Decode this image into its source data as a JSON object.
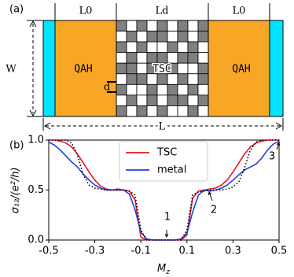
{
  "diagram": {
    "panel_label": "(a)",
    "lengths": {
      "left": "L0",
      "middle": "Ld",
      "right": "L0"
    },
    "width": "W",
    "total": "L",
    "unit": "d",
    "left_block": "QAH",
    "middle_block": "TSC",
    "right_block": "QAH"
  },
  "chart_data": {
    "type": "line",
    "panel_label": "(b)",
    "xlabel": {
      "main": "M",
      "sub": "z"
    },
    "ylabel": "σ₁₂/(e²/h)",
    "x": [
      -0.5,
      -0.475,
      -0.45,
      -0.425,
      -0.4,
      -0.375,
      -0.35,
      -0.325,
      -0.3,
      -0.275,
      -0.25,
      -0.225,
      -0.2,
      -0.175,
      -0.15,
      -0.125,
      -0.1,
      -0.075,
      -0.05,
      -0.025,
      0,
      0.025,
      0.05,
      0.075,
      0.1,
      0.125,
      0.15,
      0.175,
      0.2,
      0.225,
      0.25,
      0.275,
      0.3,
      0.325,
      0.35,
      0.375,
      0.4,
      0.425,
      0.45,
      0.475,
      0.5
    ],
    "series": [
      {
        "name": "TSC",
        "color": "#e8141c",
        "values": [
          1,
          1,
          0.99,
          0.97,
          0.93,
          0.86,
          0.77,
          0.68,
          0.6,
          0.54,
          0.51,
          0.5,
          0.5,
          0.5,
          0.49,
          0.4,
          0.03,
          0,
          0,
          0,
          0,
          0,
          0,
          0,
          0.05,
          0.42,
          0.49,
          0.5,
          0.51,
          0.52,
          0.55,
          0.6,
          0.68,
          0.77,
          0.86,
          0.93,
          0.97,
          0.99,
          1,
          1,
          1
        ]
      },
      {
        "name": "metal",
        "color": "#1f3fe0",
        "values": [
          0.98,
          0.95,
          0.9,
          0.84,
          0.78,
          0.73,
          0.66,
          0.6,
          0.55,
          0.52,
          0.5,
          0.5,
          0.51,
          0.5,
          0.46,
          0.3,
          0.08,
          0.01,
          0,
          0,
          0,
          0,
          0,
          0.01,
          0.07,
          0.28,
          0.45,
          0.5,
          0.49,
          0.5,
          0.52,
          0.55,
          0.6,
          0.65,
          0.7,
          0.73,
          0.76,
          0.82,
          0.9,
          0.96,
          0.99
        ]
      },
      {
        "color": "#000000",
        "dash": "dotted",
        "values": [
          1,
          1,
          1,
          1,
          0.97,
          0.85,
          0.65,
          0.55,
          0.52,
          0.51,
          0.5,
          0.5,
          0.5,
          0.5,
          0.49,
          0.45,
          0.1,
          0,
          0,
          0,
          0,
          0,
          0,
          0,
          0.1,
          0.45,
          0.48,
          0.49,
          0.5,
          0.5,
          0.5,
          0.51,
          0.53,
          0.58,
          0.72,
          0.9,
          0.98,
          1,
          1,
          1,
          1
        ]
      }
    ],
    "xlim": [
      -0.5,
      0.5
    ],
    "xticks": [
      -0.5,
      -0.3,
      -0.1,
      0.1,
      0.3,
      0.5
    ],
    "ylim": [
      0,
      1
    ],
    "yticks": [
      {
        "value": 0,
        "label": "0.0"
      },
      {
        "value": 0.5,
        "label": "0.5"
      },
      {
        "value": 1,
        "label": "1.0"
      }
    ],
    "annotations": [
      "1",
      "2",
      "3"
    ]
  }
}
